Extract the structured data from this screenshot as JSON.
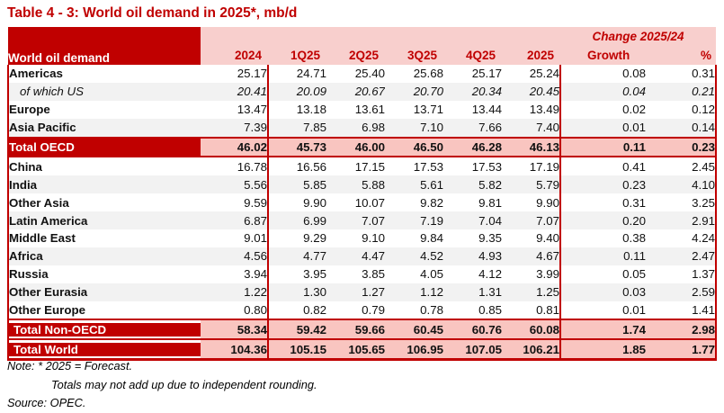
{
  "title": "Table 4 - 3: World oil demand in 2025*, mb/d",
  "colors": {
    "accent_dark_red": "#C00000",
    "header_pink": "#F8CFCD",
    "total_row_pink": "#F9C5C0",
    "stripe_gray": "#F2F2F2"
  },
  "table": {
    "corner_label": "World oil demand",
    "change_header": "Change 2025/24",
    "columns": [
      "2024",
      "1Q25",
      "2Q25",
      "3Q25",
      "4Q25",
      "2025",
      "Growth",
      "%"
    ],
    "rows": [
      {
        "label": "Americas",
        "style": "plain",
        "stripe": false,
        "values": [
          "25.17",
          "24.71",
          "25.40",
          "25.68",
          "25.17",
          "25.24",
          "0.08",
          "0.31"
        ]
      },
      {
        "label": "of which US",
        "style": "us",
        "stripe": true,
        "values": [
          "20.41",
          "20.09",
          "20.67",
          "20.70",
          "20.34",
          "20.45",
          "0.04",
          "0.21"
        ]
      },
      {
        "label": "Europe",
        "style": "plain",
        "stripe": false,
        "values": [
          "13.47",
          "13.18",
          "13.61",
          "13.71",
          "13.44",
          "13.49",
          "0.02",
          "0.12"
        ]
      },
      {
        "label": "Asia Pacific",
        "style": "plain",
        "stripe": true,
        "values": [
          "7.39",
          "7.85",
          "6.98",
          "7.10",
          "7.66",
          "7.40",
          "0.01",
          "0.14"
        ]
      },
      {
        "label": "Total OECD",
        "style": "total",
        "stripe": false,
        "values": [
          "46.02",
          "45.73",
          "46.00",
          "46.50",
          "46.28",
          "46.13",
          "0.11",
          "0.23"
        ]
      },
      {
        "label": "China",
        "style": "plain",
        "stripe": false,
        "values": [
          "16.78",
          "16.56",
          "17.15",
          "17.53",
          "17.53",
          "17.19",
          "0.41",
          "2.45"
        ]
      },
      {
        "label": "India",
        "style": "plain",
        "stripe": true,
        "values": [
          "5.56",
          "5.85",
          "5.88",
          "5.61",
          "5.82",
          "5.79",
          "0.23",
          "4.10"
        ]
      },
      {
        "label": "Other Asia",
        "style": "plain",
        "stripe": false,
        "values": [
          "9.59",
          "9.90",
          "10.07",
          "9.82",
          "9.81",
          "9.90",
          "0.31",
          "3.25"
        ]
      },
      {
        "label": "Latin America",
        "style": "plain",
        "stripe": true,
        "values": [
          "6.87",
          "6.99",
          "7.07",
          "7.19",
          "7.04",
          "7.07",
          "0.20",
          "2.91"
        ]
      },
      {
        "label": "Middle East",
        "style": "plain",
        "stripe": false,
        "values": [
          "9.01",
          "9.29",
          "9.10",
          "9.84",
          "9.35",
          "9.40",
          "0.38",
          "4.24"
        ]
      },
      {
        "label": "Africa",
        "style": "plain",
        "stripe": true,
        "values": [
          "4.56",
          "4.77",
          "4.47",
          "4.52",
          "4.93",
          "4.67",
          "0.11",
          "2.47"
        ]
      },
      {
        "label": "Russia",
        "style": "plain",
        "stripe": false,
        "values": [
          "3.94",
          "3.95",
          "3.85",
          "4.05",
          "4.12",
          "3.99",
          "0.05",
          "1.37"
        ]
      },
      {
        "label": "Other Eurasia",
        "style": "plain",
        "stripe": true,
        "values": [
          "1.22",
          "1.30",
          "1.27",
          "1.12",
          "1.31",
          "1.25",
          "0.03",
          "2.59"
        ]
      },
      {
        "label": "Other Europe",
        "style": "plain",
        "stripe": false,
        "values": [
          "0.80",
          "0.82",
          "0.79",
          "0.78",
          "0.85",
          "0.81",
          "0.01",
          "1.41"
        ]
      },
      {
        "label": "Total Non-OECD",
        "style": "total-gap",
        "stripe": false,
        "values": [
          "58.34",
          "59.42",
          "59.66",
          "60.45",
          "60.76",
          "60.08",
          "1.74",
          "2.98"
        ]
      },
      {
        "label": "Total World",
        "style": "total-world",
        "stripe": false,
        "values": [
          "104.36",
          "105.15",
          "105.65",
          "106.95",
          "107.05",
          "106.21",
          "1.85",
          "1.77"
        ]
      }
    ]
  },
  "notes": {
    "note1": "Note: * 2025 = Forecast.",
    "note2": "Totals may not add up due to independent rounding.",
    "source": "Source: OPEC."
  }
}
